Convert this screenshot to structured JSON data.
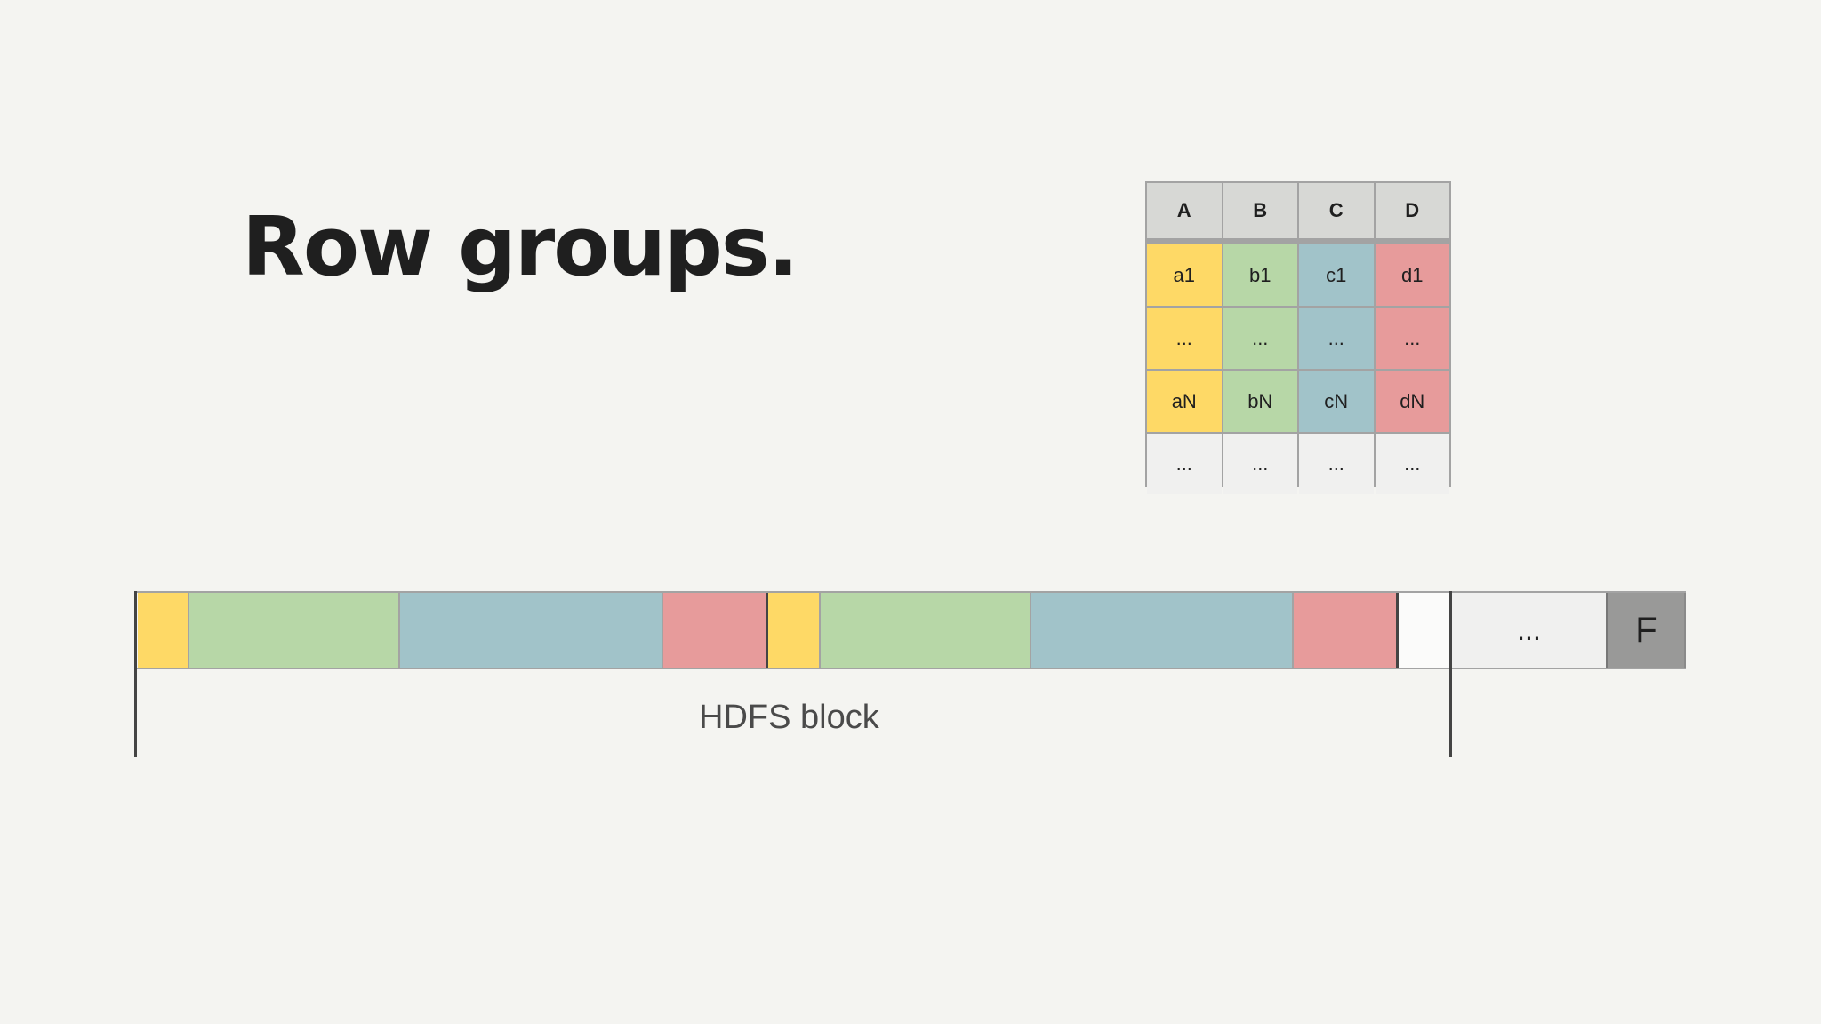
{
  "title": "Row groups.",
  "table": {
    "headers": [
      "A",
      "B",
      "C",
      "D"
    ],
    "rows": [
      [
        "a1",
        "b1",
        "c1",
        "d1"
      ],
      [
        "...",
        "...",
        "...",
        "..."
      ],
      [
        "aN",
        "bN",
        "cN",
        "dN"
      ],
      [
        "...",
        "...",
        "...",
        "..."
      ]
    ]
  },
  "strip": {
    "dots_label": "...",
    "footer_label": "F"
  },
  "hdfs_label": "HDFS block",
  "colors": {
    "A": "#fed966",
    "B": "#b7d7a7",
    "C": "#a1c3c9",
    "D": "#e79b9b",
    "empty": "#f0f0ef",
    "footer": "#999998"
  }
}
